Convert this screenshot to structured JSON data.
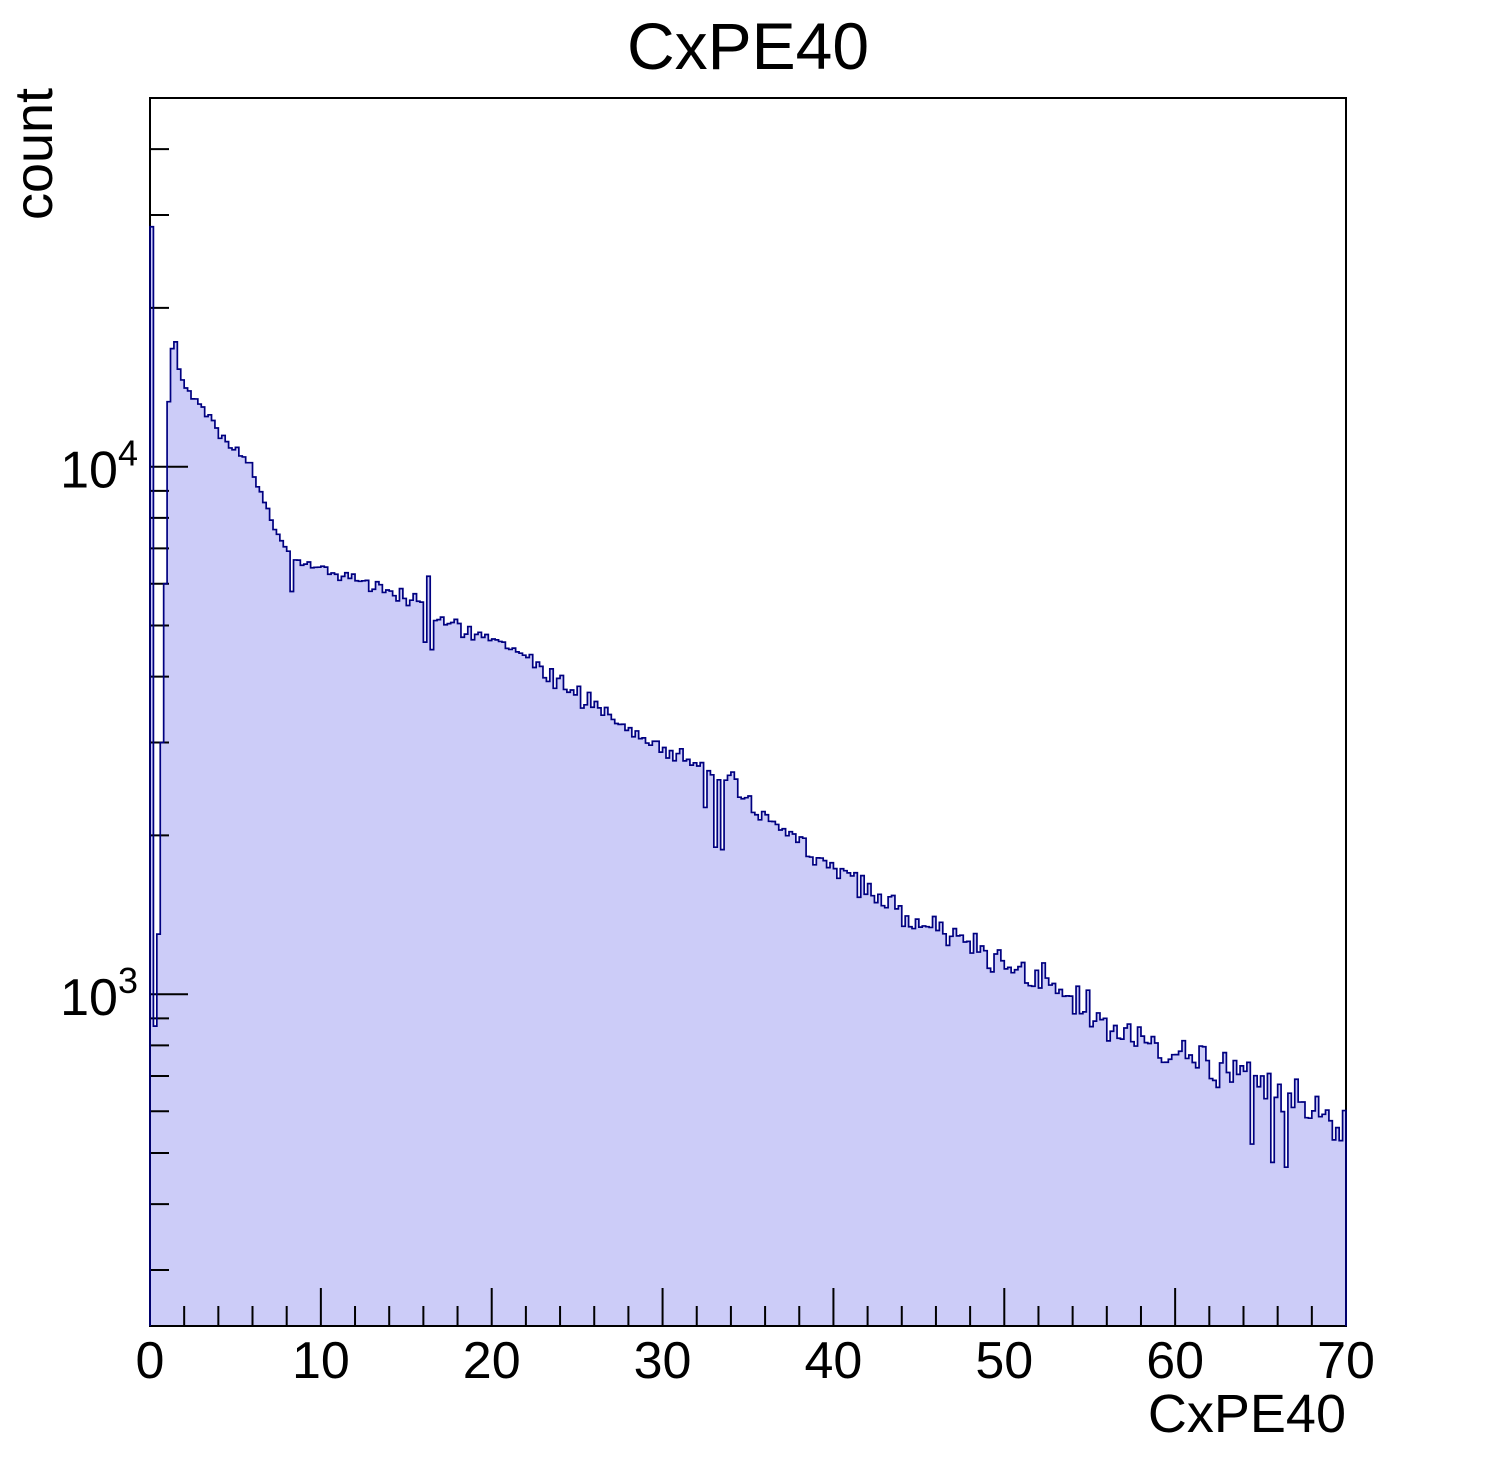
{
  "title": "CxPE40",
  "colors": {
    "fill": "#ccccf8",
    "line": "#000080",
    "frame": "#000000",
    "text": "#000000",
    "background": "#ffffff"
  },
  "axes": {
    "x": {
      "label": "CxPE40",
      "min": 0,
      "max": 70,
      "major_tick_values": [
        0,
        10,
        20,
        30,
        40,
        50,
        60,
        70
      ],
      "major_tick_labels": [
        "0",
        "10",
        "20",
        "30",
        "40",
        "50",
        "60",
        "70"
      ],
      "minor_tick_step": 2
    },
    "y": {
      "label": "count",
      "scale": "log",
      "min": 235,
      "max": 50000,
      "major_ticks": [
        {
          "value": 1000,
          "base": "10",
          "exp": "3"
        },
        {
          "value": 10000,
          "base": "10",
          "exp": "4"
        }
      ]
    }
  },
  "chart_data": {
    "type": "histogram",
    "title": "CxPE40",
    "xlabel": "CxPE40",
    "ylabel": "count",
    "x_range": [
      0,
      70
    ],
    "bins": 350,
    "bin_width": 0.2,
    "y_scale": "log",
    "ylim": [
      235,
      50000
    ],
    "anchors": [
      [
        1.1,
        13200
      ],
      [
        1.3,
        16800
      ],
      [
        1.5,
        17500
      ],
      [
        1.7,
        15600
      ],
      [
        2.0,
        14200
      ],
      [
        2.4,
        13800
      ],
      [
        3.0,
        13100
      ],
      [
        3.5,
        12400
      ],
      [
        4.0,
        11700
      ],
      [
        4.5,
        11100
      ],
      [
        5.0,
        10700
      ],
      [
        5.5,
        10400
      ],
      [
        6.0,
        9800
      ],
      [
        6.5,
        8900
      ],
      [
        7.0,
        8100
      ],
      [
        7.5,
        7400
      ],
      [
        8.0,
        7000
      ],
      [
        8.5,
        6700
      ],
      [
        9.0,
        6600
      ],
      [
        10,
        6450
      ],
      [
        11,
        6300
      ],
      [
        12,
        6100
      ],
      [
        13,
        5900
      ],
      [
        14,
        5750
      ],
      [
        15,
        5650
      ],
      [
        16,
        5550
      ],
      [
        17,
        5150
      ],
      [
        18,
        5000
      ],
      [
        19,
        4800
      ],
      [
        20,
        4650
      ],
      [
        22,
        4350
      ],
      [
        24,
        3900
      ],
      [
        26,
        3550
      ],
      [
        28,
        3170
      ],
      [
        30,
        2920
      ],
      [
        32,
        2750
      ],
      [
        34,
        2480
      ],
      [
        36,
        2150
      ],
      [
        38,
        1950
      ],
      [
        40,
        1730
      ],
      [
        42,
        1560
      ],
      [
        44,
        1430
      ],
      [
        46,
        1330
      ],
      [
        48,
        1240
      ],
      [
        50,
        1150
      ],
      [
        52,
        1070
      ],
      [
        54,
        980
      ],
      [
        56,
        870
      ],
      [
        58,
        805
      ],
      [
        60,
        775
      ],
      [
        62,
        730
      ],
      [
        64,
        700
      ],
      [
        66,
        650
      ],
      [
        68,
        600
      ],
      [
        70,
        545
      ]
    ],
    "overrides": [
      [
        0.1,
        28500
      ],
      [
        0.3,
        870
      ],
      [
        0.5,
        1300
      ],
      [
        0.7,
        3000
      ],
      [
        0.9,
        6000
      ],
      [
        8.3,
        5800
      ],
      [
        16.1,
        4650
      ],
      [
        16.3,
        6200
      ],
      [
        16.5,
        4500
      ],
      [
        32.5,
        2260
      ],
      [
        33.1,
        1900
      ],
      [
        33.5,
        1880
      ],
      [
        33.9,
        2600
      ],
      [
        64.5,
        520
      ],
      [
        65.1,
        700
      ],
      [
        65.7,
        480
      ],
      [
        66.5,
        470
      ],
      [
        67.1,
        690
      ],
      [
        68.3,
        640
      ]
    ],
    "noise_seed": 42,
    "noise_scale": 1.7
  }
}
